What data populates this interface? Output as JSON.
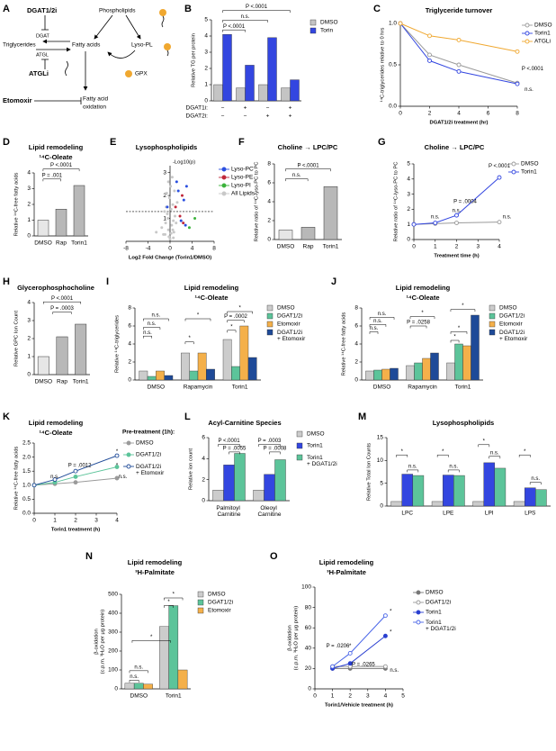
{
  "diagram": {
    "label": "A",
    "texts": [
      "DGAT1/2i",
      "Phospholipids",
      "Triglycerides",
      "DGAT",
      "ATGL",
      "Fatty acids",
      "Lyso-PL",
      "ATGLi",
      "GPX",
      "Etomoxir",
      "Fatty acid",
      "oxidation"
    ]
  },
  "chart_data": [
    {
      "type": "bar",
      "label": "B",
      "y_label": "Relative TG per protein",
      "category_rows": [
        {
          "label": "DGAT1i:",
          "values": [
            "−",
            "+",
            "−",
            "+"
          ]
        },
        {
          "label": "DGAT2i:",
          "values": [
            "−",
            "−",
            "+",
            "+"
          ]
        }
      ],
      "series": [
        {
          "name": "DMSO",
          "color": "#c4c4c4",
          "values": [
            1,
            0.8,
            1,
            0.8
          ]
        },
        {
          "name": "Torin",
          "color": "#3346e0",
          "values": [
            4.1,
            2.2,
            3.9,
            1.3
          ]
        }
      ],
      "ylim": [
        0,
        5
      ],
      "yticks": [
        0,
        1,
        2,
        3,
        4,
        5
      ],
      "annotations": [
        "P <.0001",
        "n.s.",
        "P <.0001"
      ]
    },
    {
      "type": "line",
      "label": "C",
      "title": "Triglyceride turnover",
      "y_label": "¹⁴C-triglycerides relative to 0 hrs",
      "x_label": "DGAT1/2i treatment (hr)",
      "x": [
        0,
        2,
        4,
        8
      ],
      "series": [
        {
          "name": "DMSO",
          "color": "#9a9a9a",
          "marker": "open",
          "values": [
            1,
            0.62,
            0.5,
            0.28
          ]
        },
        {
          "name": "Torin1",
          "color": "#3346e0",
          "marker": "open",
          "values": [
            1,
            0.55,
            0.42,
            0.27
          ]
        },
        {
          "name": "ATGLi",
          "color": "#f0a830",
          "marker": "open",
          "values": [
            1,
            0.85,
            0.8,
            0.66
          ]
        }
      ],
      "xlim": [
        0,
        8
      ],
      "xticks": [
        0,
        2,
        4,
        6,
        8
      ],
      "ylim": [
        0,
        1.0
      ],
      "yticks": [
        {
          "value": 0,
          "label": "0.0"
        },
        {
          "value": 0.5,
          "label": "0.5"
        },
        {
          "value": 1,
          "label": "1.0"
        }
      ],
      "annotations": [
        "P <.0001",
        "n.s."
      ]
    },
    {
      "type": "bar",
      "label": "D",
      "title": "Lipid remodeling",
      "subtitle": "¹⁴C-Oleate",
      "y_label": "Relative ¹⁴C-free fatty acids",
      "categories": [
        "DMSO",
        "Rap",
        "Torin1"
      ],
      "values": [
        1,
        1.7,
        3.2
      ],
      "colors": [
        "#e6e6e6",
        "#b8b8b8",
        "#b8b8b8"
      ],
      "ylim": [
        0,
        4
      ],
      "yticks": [
        0,
        1,
        2,
        3,
        4
      ],
      "annotations": [
        "P <.0001",
        "P = .001"
      ]
    },
    {
      "type": "scatter",
      "label": "E",
      "title": "Lysophospholipids",
      "y_label": "-Log10(p)",
      "x_label": "Log2 Fold Change (Torin1/DMSO)",
      "hline": 1.3,
      "series": [
        {
          "name": "Lyso-PC",
          "color": "#2a4fe0",
          "x": [
            1.5,
            2.5,
            3.0,
            2.0,
            1.2,
            -0.5,
            2.8
          ],
          "y": [
            2.2,
            1.8,
            2.4,
            0.9,
            2.6,
            1.5,
            0.7
          ]
        },
        {
          "name": "Lyso-PE",
          "color": "#c0283a",
          "x": [
            1.8,
            2.2,
            1.0,
            2.4
          ],
          "y": [
            1.1,
            2.0,
            1.5,
            0.8
          ]
        },
        {
          "name": "Lyso-PI",
          "color": "#3bb33b",
          "x": [
            4.5,
            3.5
          ],
          "y": [
            1.0,
            0.6
          ]
        },
        {
          "name": "All Lipids",
          "color": "#c8c8c8",
          "x": [
            -1.2,
            -0.8,
            -0.5,
            -0.3,
            -0.1,
            0.1,
            0.3,
            0.5,
            0.7,
            0.9,
            -0.6,
            -0.2,
            0.2,
            0.4,
            0.6,
            -1.5,
            1.3,
            -0.9,
            0.8,
            -0.4,
            0.0,
            0.5,
            -0.7,
            1.1,
            -0.3,
            0.2,
            -2.5,
            2.0,
            -1.0,
            0.6
          ],
          "y": [
            0.3,
            0.8,
            1.2,
            0.5,
            1.9,
            2.4,
            0.7,
            1.6,
            0.4,
            1.1,
            2.1,
            0.2,
            1.4,
            2.8,
            0.9,
            0.6,
            1.7,
            0.3,
            2.2,
            1.0,
            0.1,
            0.5,
            1.5,
            0.8,
            2.6,
            0.35,
            0.4,
            0.9,
            1.3,
            0.15
          ]
        }
      ],
      "xlim": [
        -8,
        8
      ],
      "xticks": [
        -8,
        -4,
        0,
        4,
        8
      ],
      "ylim": [
        0,
        3.3
      ],
      "yticks": [
        1,
        2,
        3
      ]
    },
    {
      "type": "bar",
      "label": "F",
      "title": "Choline → LPC/PC",
      "y_label": "Relative ratio of ¹⁴C-lyso-PC to PC",
      "categories": [
        "DMSO",
        "Rap",
        "Torin1"
      ],
      "values": [
        1,
        1.3,
        5.6
      ],
      "colors": [
        "#e6e6e6",
        "#b8b8b8",
        "#b8b8b8"
      ],
      "ylim": [
        0,
        8
      ],
      "yticks": [
        0,
        2,
        4,
        6,
        8
      ],
      "annotations": [
        "P <.0001",
        "n.s."
      ]
    },
    {
      "type": "line",
      "label": "G",
      "title": "Choline → LPC/PC",
      "y_label": "Relative ratio of ¹⁴C-lyso-PC to PC",
      "x_label": "Treatment time (h)",
      "x": [
        0,
        1,
        2,
        4
      ],
      "series": [
        {
          "name": "DMSO",
          "color": "#9a9a9a",
          "marker": "open",
          "values": [
            1,
            1.05,
            1.1,
            1.15
          ]
        },
        {
          "name": "Torin1",
          "color": "#3346e0",
          "marker": "open",
          "values": [
            1,
            1.1,
            1.6,
            4.1
          ]
        }
      ],
      "xlim": [
        0,
        4
      ],
      "xticks": [
        0,
        1,
        2,
        3,
        4
      ],
      "ylim": [
        0,
        5
      ],
      "yticks": [
        0,
        1,
        2,
        3,
        4,
        5
      ],
      "annotations": [
        "n.s.",
        "n.s.",
        "P = .0004",
        "P <.0001",
        "n.s."
      ]
    },
    {
      "type": "bar",
      "label": "H",
      "title": "Glycerophosphocholine",
      "y_label": "Relative GPC Ion Count",
      "categories": [
        "DMSO",
        "Rap",
        "Torin1"
      ],
      "values": [
        1,
        2.1,
        2.8
      ],
      "colors": [
        "#e6e6e6",
        "#b8b8b8",
        "#b8b8b8"
      ],
      "ylim": [
        0,
        4
      ],
      "yticks": [
        0,
        1,
        2,
        3,
        4
      ],
      "annotations": [
        "P <.0001",
        "P = .0003"
      ]
    },
    {
      "type": "bar",
      "label": "I",
      "title": "Lipid remodeling",
      "subtitle": "¹⁴C-Oleate",
      "y_label": "Relative ¹⁴C-triglycerides",
      "categories": [
        "DMSO",
        "Rapamycin",
        "Torin1"
      ],
      "series": [
        {
          "name": "DMSO",
          "color": "#cccccc",
          "values": [
            1,
            3.0,
            4.5
          ]
        },
        {
          "name": "DGAT1/2i",
          "color": "#5cc49a",
          "values": [
            0.4,
            1.0,
            1.5
          ]
        },
        {
          "name": "Etomoxir",
          "color": "#f4b04a",
          "values": [
            1.0,
            3.0,
            6.0
          ]
        },
        {
          "name": "DGAT1/2i + Etomoxir",
          "color": "#1e4a98",
          "values": [
            0.5,
            1.2,
            2.5
          ]
        }
      ],
      "ylim": [
        0,
        8
      ],
      "yticks": [
        0,
        2,
        4,
        6,
        8
      ],
      "annotations": [
        "n.s.",
        "n.s.",
        "n.s.",
        "*",
        "*",
        "*",
        "P = .0002",
        "*"
      ]
    },
    {
      "type": "bar",
      "label": "J",
      "title": "Lipid remodeling",
      "subtitle": "¹⁴C-Oleate",
      "y_label": "Relative ¹⁴C-free fatty acids",
      "categories": [
        "DMSO",
        "Rapamycin",
        "Torin1"
      ],
      "series": [
        {
          "name": "DMSO",
          "color": "#cccccc",
          "values": [
            1,
            1.6,
            1.9
          ]
        },
        {
          "name": "DGAT1/2i",
          "color": "#5cc49a",
          "values": [
            1.1,
            1.9,
            4.0
          ]
        },
        {
          "name": "Etomoxir",
          "color": "#f4b04a",
          "values": [
            1.2,
            2.4,
            3.8
          ]
        },
        {
          "name": "DGAT1/2i + Etomoxir",
          "color": "#1e4a98",
          "values": [
            1.3,
            3.0,
            7.2
          ]
        }
      ],
      "ylim": [
        0,
        8
      ],
      "yticks": [
        0,
        2,
        4,
        6,
        8
      ],
      "annotations": [
        "n.s.",
        "n.s.",
        "n.s.",
        "*",
        "P = .0258",
        "*",
        "*",
        "*"
      ]
    },
    {
      "type": "line",
      "label": "K",
      "title": "Lipid remodeling",
      "subtitle": "¹⁴C-Oleate",
      "y_label": "Relative ¹⁴C-free fatty acids",
      "x_label": "Torin1 treatment (h)",
      "legend_title": "Pre-treatment (1h):",
      "x": [
        0,
        1,
        2,
        4
      ],
      "series": [
        {
          "name": "DMSO",
          "color": "#9a9a9a",
          "marker": "filled",
          "values": [
            1,
            1.05,
            1.1,
            1.25
          ]
        },
        {
          "name": "DGAT1/2i",
          "color": "#5cc49a",
          "marker": "filled",
          "values": [
            1,
            1.1,
            1.3,
            1.65
          ]
        },
        {
          "name": "DGAT1/2i + Etomoxir",
          "color": "#1e4a98",
          "marker": "open",
          "values": [
            1,
            1.2,
            1.5,
            2.05
          ]
        }
      ],
      "xlim": [
        0,
        4
      ],
      "xticks": [
        0,
        1,
        2,
        3,
        4
      ],
      "ylim": [
        0,
        2.5
      ],
      "yticks": [
        {
          "value": 0,
          "label": "0.0"
        },
        {
          "value": 0.5,
          "label": "0.5"
        },
        {
          "value": 1,
          "label": "1.0"
        },
        {
          "value": 1.5,
          "label": "1.5"
        },
        {
          "value": 2,
          "label": "2.0"
        },
        {
          "value": 2.5,
          "label": "2.5"
        }
      ],
      "annotations": [
        "n.s.",
        "P = .0012",
        "*",
        "*",
        "n.s."
      ]
    },
    {
      "type": "bar",
      "label": "L",
      "title": "Acyl-Carnitine Species",
      "y_label": "Relative ion count",
      "categories": [
        "Palmitoyl Carnitine",
        "Oleoyl Carnitine"
      ],
      "series": [
        {
          "name": "DMSO",
          "color": "#cccccc",
          "values": [
            1.0,
            1.0
          ]
        },
        {
          "name": "Torin1",
          "color": "#3346e0",
          "values": [
            3.4,
            2.5
          ]
        },
        {
          "name": "Torin1 + DGAT1/2i",
          "color": "#5cc49a",
          "values": [
            4.5,
            3.9
          ]
        }
      ],
      "ylim": [
        0,
        6
      ],
      "yticks": [
        0,
        2,
        4,
        6
      ],
      "annotations": [
        "P <.0001",
        "P = .0055",
        "P = .0003",
        "P = .0008"
      ]
    },
    {
      "type": "bar",
      "label": "M",
      "title": "Lysophospholipids",
      "y_label": "Relative Total Ion Counts",
      "categories": [
        "LPC",
        "LPE",
        "LPI",
        "LPS"
      ],
      "series": [
        {
          "color": "#cccccc",
          "values": [
            1,
            1,
            1,
            1
          ]
        },
        {
          "color": "#3346e0",
          "values": [
            7.0,
            6.8,
            9.5,
            4.0
          ]
        },
        {
          "color": "#5cc49a",
          "values": [
            6.7,
            6.7,
            8.3,
            3.6
          ]
        }
      ],
      "ylim": [
        0,
        15
      ],
      "yticks": [
        0,
        5,
        10,
        15
      ],
      "annotations": [
        "*",
        "n.s.",
        "*",
        "n.s.",
        "*",
        "n.s.",
        "*",
        "n.s."
      ]
    },
    {
      "type": "bar",
      "label": "N",
      "title": "Lipid remodeling",
      "subtitle": "³H-Palmitate",
      "y_label": [
        "β-oxidation",
        "(c.p.m. ³H₂O per μg protein)"
      ],
      "categories": [
        "DMSO",
        "Torin1"
      ],
      "series": [
        {
          "name": "DMSO",
          "color": "#cccccc",
          "values": [
            30,
            330
          ]
        },
        {
          "name": "DGAT1/2i",
          "color": "#5cc49a",
          "values": [
            30,
            440
          ]
        },
        {
          "name": "Etomoxir",
          "color": "#f4b04a",
          "values": [
            25,
            100
          ]
        }
      ],
      "ylim": [
        0,
        500
      ],
      "yticks": [
        0,
        100,
        200,
        300,
        400,
        500
      ],
      "annotations": [
        "n.s.",
        "n.s.",
        "*",
        "*",
        "*"
      ]
    },
    {
      "type": "line",
      "label": "O",
      "title": "Lipid remodeling",
      "subtitle": "³H-Palmitate",
      "y_label": [
        "β-oxidation",
        "(c.p.m. ³H₂O per μg protein)"
      ],
      "x_label": "Torin1/Vehicle treatment (h)",
      "x": [
        1,
        2,
        4
      ],
      "series": [
        {
          "name": "DMSO",
          "color": "#777777",
          "marker": "filled",
          "values": [
            20,
            20,
            20
          ]
        },
        {
          "name": "DGAT1/2i",
          "color": "#999999",
          "marker": "open",
          "values": [
            22,
            22,
            22
          ]
        },
        {
          "name": "Torin1",
          "color": "#2a3fd0",
          "marker": "filled",
          "values": [
            20,
            25,
            52
          ]
        },
        {
          "name": "Torin1 + DGAT1/2i",
          "color": "#4a66e8",
          "marker": "open",
          "values": [
            22,
            35,
            72
          ]
        }
      ],
      "xlim": [
        0,
        5
      ],
      "xticks": [
        0,
        1,
        2,
        3,
        4,
        5
      ],
      "ylim": [
        0,
        100
      ],
      "yticks": [
        0,
        20,
        40,
        60,
        80,
        100
      ],
      "annotations": [
        "P = .0206",
        "*",
        "P = .0265",
        "*",
        "*",
        "n.s."
      ]
    }
  ]
}
